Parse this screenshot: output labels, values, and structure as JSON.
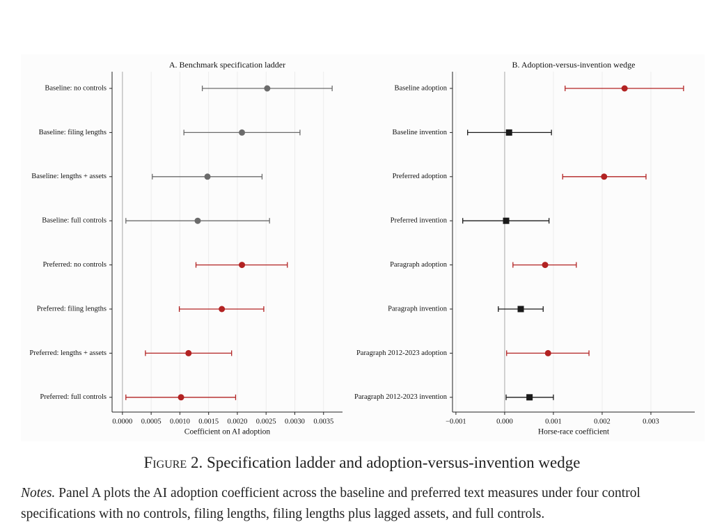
{
  "chart_data": [
    {
      "type": "dot",
      "title": "A. Benchmark specification ladder",
      "xlabel": "Coefficient on AI adoption",
      "categories": [
        "Baseline: no controls",
        "Baseline: filing lengths",
        "Baseline: lengths + assets",
        "Baseline: full controls",
        "Preferred: no controls",
        "Preferred: filing lengths",
        "Preferred: lengths + assets",
        "Preferred: full controls"
      ],
      "values": [
        0.00252,
        0.00208,
        0.00148,
        0.00131,
        0.00208,
        0.00173,
        0.00115,
        0.00102
      ],
      "ci_low": [
        0.00139,
        0.00107,
        0.00052,
        6e-05,
        0.00128,
        0.00099,
        0.0004,
        6e-05
      ],
      "ci_high": [
        0.00365,
        0.00309,
        0.00243,
        0.00256,
        0.00287,
        0.00246,
        0.0019,
        0.00197
      ],
      "colors": [
        "#6b6b6b",
        "#6b6b6b",
        "#6b6b6b",
        "#6b6b6b",
        "#b22222",
        "#b22222",
        "#b22222",
        "#b22222"
      ],
      "markers": [
        "circle",
        "circle",
        "circle",
        "circle",
        "circle",
        "circle",
        "circle",
        "circle"
      ],
      "xlim": [
        -0.00018,
        0.00383
      ],
      "xticks": [
        {
          "value": 0,
          "label": "0.0000"
        },
        {
          "value": 0.0005,
          "label": "0.0005"
        },
        {
          "value": 0.001,
          "label": "0.0010"
        },
        {
          "value": 0.0015,
          "label": "0.0015"
        },
        {
          "value": 0.002,
          "label": "0.0020"
        },
        {
          "value": 0.0025,
          "label": "0.0025"
        },
        {
          "value": 0.003,
          "label": "0.0030"
        },
        {
          "value": 0.0035,
          "label": "0.0035"
        }
      ],
      "grid": true
    },
    {
      "type": "dot",
      "title": "B. Adoption-versus-invention wedge",
      "xlabel": "Horse-race coefficient",
      "categories": [
        "Baseline adoption",
        "Baseline invention",
        "Preferred adoption",
        "Preferred invention",
        "Paragraph adoption",
        "Paragraph invention",
        "Paragraph 2012-2023 adoption",
        "Paragraph 2012-2023 invention"
      ],
      "values": [
        0.00246,
        9e-05,
        0.00204,
        3e-05,
        0.00083,
        0.00033,
        0.00089,
        0.00051
      ],
      "ci_low": [
        0.00124,
        -0.00076,
        0.00119,
        -0.00086,
        0.00017,
        -0.00013,
        4e-05,
        3e-05
      ],
      "ci_high": [
        0.00367,
        0.00096,
        0.0029,
        0.00091,
        0.00147,
        0.00079,
        0.00173,
        0.001
      ],
      "colors": [
        "#b22222",
        "#1a1a1a",
        "#b22222",
        "#1a1a1a",
        "#b22222",
        "#1a1a1a",
        "#b22222",
        "#1a1a1a"
      ],
      "markers": [
        "circle",
        "square",
        "circle",
        "square",
        "circle",
        "square",
        "circle",
        "square"
      ],
      "xlim": [
        -0.00107,
        0.0039
      ],
      "xticks": [
        {
          "value": -0.001,
          "label": "−0.001"
        },
        {
          "value": 0,
          "label": "0.000"
        },
        {
          "value": 0.001,
          "label": "0.001"
        },
        {
          "value": 0.002,
          "label": "0.002"
        },
        {
          "value": 0.003,
          "label": "0.003"
        }
      ],
      "grid": true
    }
  ],
  "caption": {
    "label": "Figure 2.",
    "title": "Specification ladder and adoption-versus-invention wedge"
  },
  "notes": {
    "label": "Notes.",
    "text": "Panel A plots the AI adoption coefficient across the baseline and preferred text measures under four control specifications with no controls, filing lengths, filing lengths plus lagged assets, and full controls."
  }
}
